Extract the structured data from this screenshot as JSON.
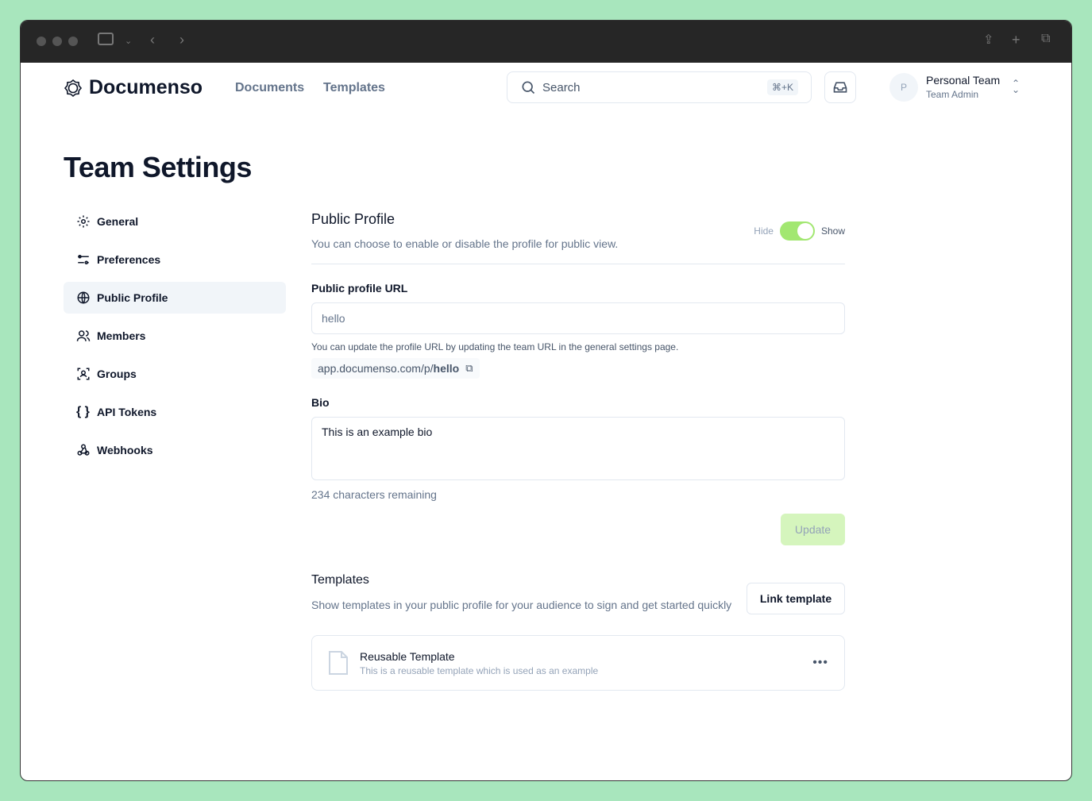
{
  "browser": {
    "icons": [
      "sidebar-icon",
      "chevron-down-icon",
      "back-icon",
      "forward-icon",
      "share-icon",
      "new-tab-icon",
      "tabs-icon"
    ]
  },
  "header": {
    "brand": "Documenso",
    "nav": [
      "Documents",
      "Templates"
    ],
    "search_placeholder": "Search",
    "search_shortcut": "⌘+K",
    "avatar_initial": "P",
    "team_name": "Personal Team",
    "team_role": "Team Admin"
  },
  "page_title": "Team Settings",
  "sidebar": {
    "items": [
      {
        "label": "General",
        "icon": "gear-icon"
      },
      {
        "label": "Preferences",
        "icon": "sliders-icon"
      },
      {
        "label": "Public Profile",
        "icon": "globe-icon",
        "active": true
      },
      {
        "label": "Members",
        "icon": "users-icon"
      },
      {
        "label": "Groups",
        "icon": "group-icon"
      },
      {
        "label": "API Tokens",
        "icon": "braces-icon"
      },
      {
        "label": "Webhooks",
        "icon": "webhook-icon"
      }
    ]
  },
  "profile": {
    "title": "Public Profile",
    "description": "You can choose to enable or disable the profile for public view.",
    "toggle_off": "Hide",
    "toggle_on": "Show",
    "enabled": true,
    "url_label": "Public profile URL",
    "url_value": "hello",
    "url_help": "You can update the profile URL by updating the team URL in the general settings page.",
    "url_prefix": "app.documenso.com/p/",
    "url_slug": "hello",
    "bio_label": "Bio",
    "bio_value": "This is an example bio",
    "bio_remaining": "234 characters remaining",
    "update_label": "Update"
  },
  "templates": {
    "title": "Templates",
    "description": "Show templates in your public profile for your audience to sign and get started quickly",
    "link_label": "Link template",
    "items": [
      {
        "name": "Reusable Template",
        "description": "This is a reusable template which is used as an example"
      }
    ]
  },
  "colors": {
    "accent": "#a2e771",
    "update_bg": "#d5f5bd"
  }
}
